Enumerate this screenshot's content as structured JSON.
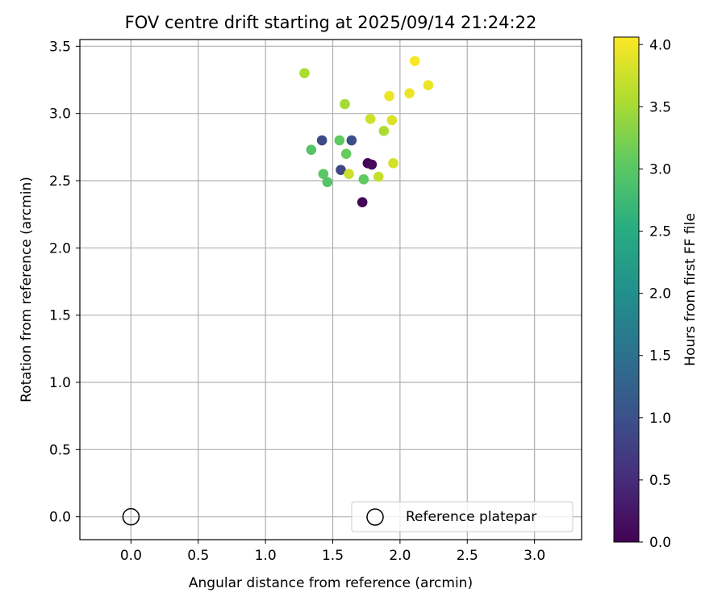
{
  "chart_data": {
    "type": "scatter",
    "title": "FOV centre drift starting at 2025/09/14 21:24:22",
    "xlabel": "Angular distance from reference (arcmin)",
    "ylabel": "Rotation from reference (arcmin)",
    "xlim": [
      -0.38,
      3.35
    ],
    "ylim": [
      -0.17,
      3.55
    ],
    "xticks": [
      "0.0",
      "0.5",
      "1.0",
      "1.5",
      "2.0",
      "2.5",
      "3.0"
    ],
    "yticks": [
      "0.0",
      "0.5",
      "1.0",
      "1.5",
      "2.0",
      "2.5",
      "3.0",
      "3.5"
    ],
    "grid": true,
    "colorbar": {
      "label": "Hours from first FF file",
      "min": 0.0,
      "max": 4.06,
      "ticks": [
        "0.0",
        "0.5",
        "1.0",
        "1.5",
        "2.0",
        "2.5",
        "3.0",
        "3.5",
        "4.0"
      ],
      "colormap": "viridis"
    },
    "reference": {
      "x": 0.0,
      "y": 0.0,
      "label": "Reference platepar"
    },
    "legend_position": "lower right",
    "points": [
      {
        "x": 1.72,
        "y": 2.34,
        "t": 0.05
      },
      {
        "x": 1.76,
        "y": 2.63,
        "t": 0.05
      },
      {
        "x": 1.79,
        "y": 2.62,
        "t": 0.1
      },
      {
        "x": 1.56,
        "y": 2.58,
        "t": 0.85
      },
      {
        "x": 1.42,
        "y": 2.8,
        "t": 0.9
      },
      {
        "x": 1.64,
        "y": 2.8,
        "t": 0.95
      },
      {
        "x": 1.34,
        "y": 2.73,
        "t": 2.95
      },
      {
        "x": 1.43,
        "y": 2.55,
        "t": 3.0
      },
      {
        "x": 1.46,
        "y": 2.49,
        "t": 2.95
      },
      {
        "x": 1.55,
        "y": 2.8,
        "t": 3.05
      },
      {
        "x": 1.6,
        "y": 2.7,
        "t": 3.1
      },
      {
        "x": 1.73,
        "y": 2.51,
        "t": 3.05
      },
      {
        "x": 1.29,
        "y": 3.3,
        "t": 3.55
      },
      {
        "x": 1.59,
        "y": 3.07,
        "t": 3.5
      },
      {
        "x": 1.88,
        "y": 2.87,
        "t": 3.55
      },
      {
        "x": 1.62,
        "y": 2.55,
        "t": 3.75
      },
      {
        "x": 1.78,
        "y": 2.96,
        "t": 3.75
      },
      {
        "x": 1.84,
        "y": 2.53,
        "t": 3.7
      },
      {
        "x": 1.95,
        "y": 2.63,
        "t": 3.8
      },
      {
        "x": 1.94,
        "y": 2.95,
        "t": 3.85
      },
      {
        "x": 1.92,
        "y": 3.13,
        "t": 3.95
      },
      {
        "x": 2.07,
        "y": 3.15,
        "t": 3.95
      },
      {
        "x": 2.21,
        "y": 3.21,
        "t": 3.95
      },
      {
        "x": 2.11,
        "y": 3.39,
        "t": 4.02
      }
    ]
  }
}
